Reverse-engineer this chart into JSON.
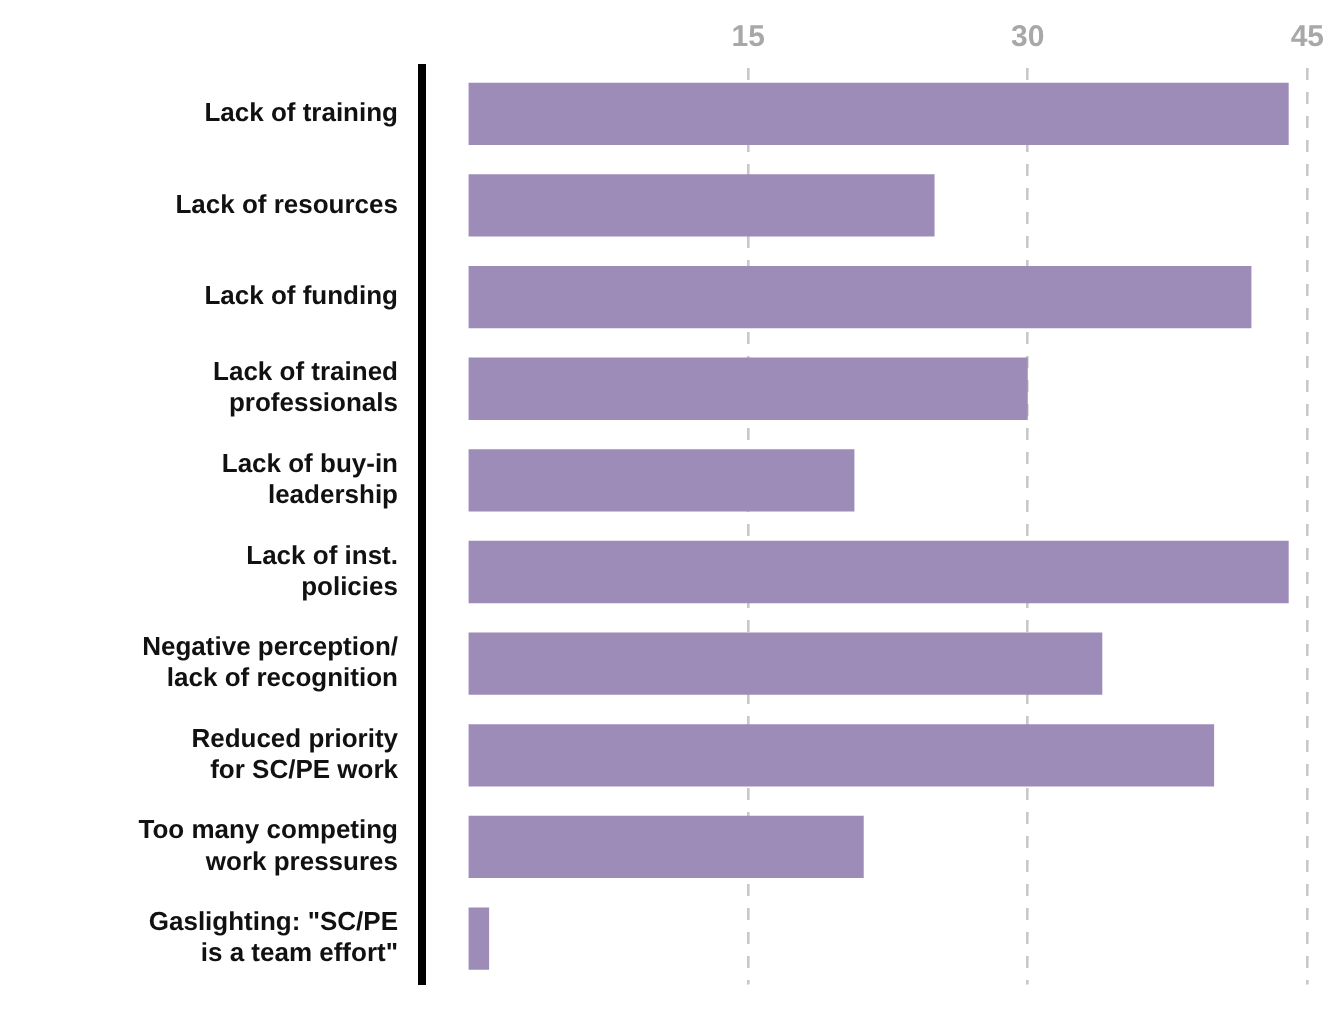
{
  "chart_data": {
    "type": "bar",
    "orientation": "horizontal",
    "categories": [
      "Lack of training",
      "Lack of resources",
      "Lack of funding",
      "Lack of trained\nprofessionals",
      "Lack of buy-in\nleadership",
      "Lack of inst.\npolicies",
      "Negative perception/\nlack of recognition",
      "Reduced priority\nfor SC/PE work",
      "Too many competing\nwork pressures",
      "Gaslighting: \"SC/PE\nis a team effort\""
    ],
    "values": [
      44,
      25,
      42,
      30,
      20.7,
      44,
      34,
      40,
      21.2,
      1.1
    ],
    "color": "#9d8bb8",
    "xlim": [
      -2.5,
      45
    ],
    "xticks": [
      15,
      30,
      45
    ],
    "grid": "x",
    "legend": false
  }
}
